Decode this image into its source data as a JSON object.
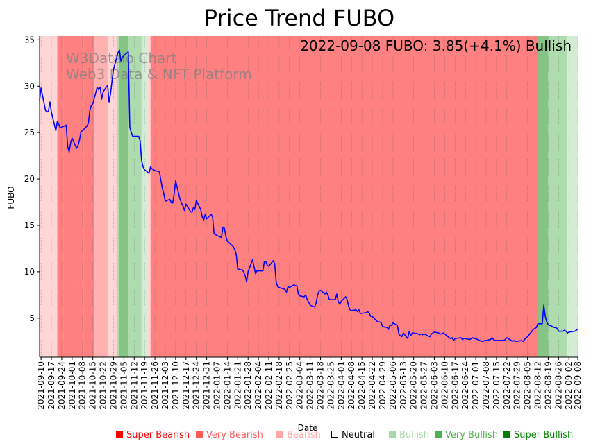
{
  "chart_data": {
    "type": "line",
    "title": "Price Trend FUBO",
    "xlabel": "Date",
    "ylabel": "FUBO",
    "ylim": [
      0.8,
      35.4
    ],
    "yticks": [
      5,
      10,
      15,
      20,
      25,
      30,
      35
    ],
    "annotation": "2022-09-08 FUBO: 3.85(+4.1%) Bullish",
    "watermark": [
      "W3Dataio Chart",
      "Web3 Data & NFT Platform"
    ],
    "start_date": "2021-09-09",
    "end_date": "2022-09-08",
    "xticks": [
      "2021-09-10",
      "2021-09-17",
      "2021-09-24",
      "2021-10-01",
      "2021-10-08",
      "2021-10-15",
      "2021-10-22",
      "2021-10-29",
      "2021-11-05",
      "2021-11-12",
      "2021-11-19",
      "2021-11-26",
      "2021-12-03",
      "2021-12-10",
      "2021-12-17",
      "2021-12-24",
      "2021-12-31",
      "2022-01-07",
      "2022-01-14",
      "2022-01-21",
      "2022-01-28",
      "2022-02-04",
      "2022-02-11",
      "2022-02-18",
      "2022-02-25",
      "2022-03-04",
      "2022-03-11",
      "2022-03-18",
      "2022-03-25",
      "2022-04-01",
      "2022-04-08",
      "2022-04-15",
      "2022-04-22",
      "2022-04-29",
      "2022-05-06",
      "2022-05-13",
      "2022-05-20",
      "2022-05-27",
      "2022-06-03",
      "2022-06-10",
      "2022-06-17",
      "2022-06-24",
      "2022-07-01",
      "2022-07-08",
      "2022-07-15",
      "2022-07-22",
      "2022-07-29",
      "2022-08-05",
      "2022-08-12",
      "2022-08-19",
      "2022-08-26",
      "2022-09-02",
      "2022-09-08"
    ],
    "price_series": {
      "name": "FUBO",
      "color": "#0000ff",
      "points": [
        [
          "2021-09-09",
          28.5
        ],
        [
          "2021-09-10",
          29.8
        ],
        [
          "2021-09-13",
          27.4
        ],
        [
          "2021-09-14",
          27.2
        ],
        [
          "2021-09-15",
          27.3
        ],
        [
          "2021-09-16",
          28.3
        ],
        [
          "2021-09-17",
          27.2
        ],
        [
          "2021-09-20",
          25.2
        ],
        [
          "2021-09-21",
          26.2
        ],
        [
          "2021-09-22",
          25.9
        ],
        [
          "2021-09-23",
          25.5
        ],
        [
          "2021-09-24",
          25.6
        ],
        [
          "2021-09-27",
          25.8
        ],
        [
          "2021-09-28",
          23.5
        ],
        [
          "2021-09-29",
          22.9
        ],
        [
          "2021-09-30",
          23.9
        ],
        [
          "2021-10-01",
          24.4
        ],
        [
          "2021-10-04",
          23.3
        ],
        [
          "2021-10-05",
          23.6
        ],
        [
          "2021-10-06",
          24.2
        ],
        [
          "2021-10-07",
          25.1
        ],
        [
          "2021-10-08",
          25.2
        ],
        [
          "2021-10-11",
          25.7
        ],
        [
          "2021-10-12",
          26.0
        ],
        [
          "2021-10-13",
          27.4
        ],
        [
          "2021-10-14",
          27.9
        ],
        [
          "2021-10-15",
          28.1
        ],
        [
          "2021-10-18",
          29.9
        ],
        [
          "2021-10-19",
          29.6
        ],
        [
          "2021-10-20",
          29.9
        ],
        [
          "2021-10-21",
          28.6
        ],
        [
          "2021-10-22",
          29.4
        ],
        [
          "2021-10-25",
          30.1
        ],
        [
          "2021-10-26",
          28.3
        ],
        [
          "2021-10-27",
          29.2
        ],
        [
          "2021-10-28",
          30.6
        ],
        [
          "2021-10-29",
          31.8
        ],
        [
          "2021-11-01",
          33.6
        ],
        [
          "2021-11-02",
          33.9
        ],
        [
          "2021-11-03",
          32.7
        ],
        [
          "2021-11-04",
          33.1
        ],
        [
          "2021-11-05",
          33.3
        ],
        [
          "2021-11-08",
          33.7
        ],
        [
          "2021-11-09",
          25.6
        ],
        [
          "2021-11-10",
          25.0
        ],
        [
          "2021-11-11",
          24.6
        ],
        [
          "2021-11-12",
          24.6
        ],
        [
          "2021-11-15",
          24.6
        ],
        [
          "2021-11-16",
          24.1
        ],
        [
          "2021-11-17",
          22.0
        ],
        [
          "2021-11-18",
          21.3
        ],
        [
          "2021-11-19",
          21.0
        ],
        [
          "2021-11-22",
          20.6
        ],
        [
          "2021-11-23",
          21.3
        ],
        [
          "2021-11-24",
          21.1
        ],
        [
          "2021-11-26",
          20.9
        ],
        [
          "2021-11-29",
          20.8
        ],
        [
          "2021-11-30",
          19.9
        ],
        [
          "2021-12-01",
          19.0
        ],
        [
          "2021-12-02",
          18.4
        ],
        [
          "2021-12-03",
          17.6
        ],
        [
          "2021-12-06",
          17.8
        ],
        [
          "2021-12-07",
          17.5
        ],
        [
          "2021-12-08",
          17.4
        ],
        [
          "2021-12-09",
          18.4
        ],
        [
          "2021-12-10",
          19.8
        ],
        [
          "2021-12-13",
          17.8
        ],
        [
          "2021-12-14",
          17.4
        ],
        [
          "2021-12-15",
          17.1
        ],
        [
          "2021-12-16",
          16.6
        ],
        [
          "2021-12-17",
          17.3
        ],
        [
          "2021-12-20",
          16.5
        ],
        [
          "2021-12-21",
          16.4
        ],
        [
          "2021-12-22",
          16.9
        ],
        [
          "2021-12-23",
          16.7
        ],
        [
          "2021-12-24",
          17.7
        ],
        [
          "2021-12-27",
          16.7
        ],
        [
          "2021-12-28",
          15.9
        ],
        [
          "2021-12-29",
          15.6
        ],
        [
          "2021-12-30",
          16.2
        ],
        [
          "2021-12-31",
          15.7
        ],
        [
          "2022-01-03",
          16.2
        ],
        [
          "2022-01-04",
          15.9
        ],
        [
          "2022-01-05",
          14.1
        ],
        [
          "2022-01-06",
          14.0
        ],
        [
          "2022-01-07",
          13.9
        ],
        [
          "2022-01-10",
          13.7
        ],
        [
          "2022-01-11",
          14.8
        ],
        [
          "2022-01-12",
          14.7
        ],
        [
          "2022-01-13",
          13.8
        ],
        [
          "2022-01-14",
          13.3
        ],
        [
          "2022-01-18",
          12.7
        ],
        [
          "2022-01-19",
          12.4
        ],
        [
          "2022-01-20",
          11.9
        ],
        [
          "2022-01-21",
          10.3
        ],
        [
          "2022-01-24",
          10.2
        ],
        [
          "2022-01-25",
          10.0
        ],
        [
          "2022-01-26",
          9.6
        ],
        [
          "2022-01-27",
          8.9
        ],
        [
          "2022-01-28",
          10.0
        ],
        [
          "2022-01-31",
          11.3
        ],
        [
          "2022-02-01",
          10.6
        ],
        [
          "2022-02-02",
          9.8
        ],
        [
          "2022-02-03",
          10.1
        ],
        [
          "2022-02-04",
          10.1
        ],
        [
          "2022-02-07",
          10.1
        ],
        [
          "2022-02-08",
          11.1
        ],
        [
          "2022-02-09",
          11.1
        ],
        [
          "2022-02-10",
          10.7
        ],
        [
          "2022-02-11",
          10.6
        ],
        [
          "2022-02-14",
          11.2
        ],
        [
          "2022-02-15",
          10.9
        ],
        [
          "2022-02-16",
          8.9
        ],
        [
          "2022-02-17",
          8.4
        ],
        [
          "2022-02-18",
          8.3
        ],
        [
          "2022-02-22",
          8.1
        ],
        [
          "2022-02-23",
          7.8
        ],
        [
          "2022-02-24",
          8.4
        ],
        [
          "2022-02-25",
          8.3
        ],
        [
          "2022-02-28",
          8.6
        ],
        [
          "2022-03-01",
          8.5
        ],
        [
          "2022-03-02",
          8.5
        ],
        [
          "2022-03-03",
          7.6
        ],
        [
          "2022-03-04",
          7.4
        ],
        [
          "2022-03-07",
          7.3
        ],
        [
          "2022-03-08",
          7.5
        ],
        [
          "2022-03-09",
          7.0
        ],
        [
          "2022-03-10",
          6.7
        ],
        [
          "2022-03-11",
          6.4
        ],
        [
          "2022-03-14",
          6.2
        ],
        [
          "2022-03-15",
          6.6
        ],
        [
          "2022-03-16",
          7.5
        ],
        [
          "2022-03-17",
          7.9
        ],
        [
          "2022-03-18",
          8.0
        ],
        [
          "2022-03-21",
          7.6
        ],
        [
          "2022-03-22",
          7.8
        ],
        [
          "2022-03-23",
          7.5
        ],
        [
          "2022-03-24",
          7.0
        ],
        [
          "2022-03-25",
          7.0
        ],
        [
          "2022-03-28",
          7.0
        ],
        [
          "2022-03-29",
          7.6
        ],
        [
          "2022-03-30",
          6.8
        ],
        [
          "2022-03-31",
          6.5
        ],
        [
          "2022-04-01",
          6.8
        ],
        [
          "2022-04-04",
          7.3
        ],
        [
          "2022-04-05",
          7.0
        ],
        [
          "2022-04-06",
          6.3
        ],
        [
          "2022-04-07",
          5.9
        ],
        [
          "2022-04-08",
          5.8
        ],
        [
          "2022-04-11",
          5.9
        ],
        [
          "2022-04-12",
          5.7
        ],
        [
          "2022-04-13",
          5.9
        ],
        [
          "2022-04-14",
          5.5
        ],
        [
          "2022-04-18",
          5.6
        ],
        [
          "2022-04-19",
          5.7
        ],
        [
          "2022-04-20",
          5.5
        ],
        [
          "2022-04-21",
          5.2
        ],
        [
          "2022-04-22",
          5.2
        ],
        [
          "2022-04-25",
          4.7
        ],
        [
          "2022-04-26",
          4.6
        ],
        [
          "2022-04-27",
          4.6
        ],
        [
          "2022-04-28",
          4.5
        ],
        [
          "2022-04-29",
          4.1
        ],
        [
          "2022-05-02",
          4.0
        ],
        [
          "2022-05-03",
          3.8
        ],
        [
          "2022-05-04",
          4.3
        ],
        [
          "2022-05-05",
          4.2
        ],
        [
          "2022-05-06",
          4.5
        ],
        [
          "2022-05-09",
          4.2
        ],
        [
          "2022-05-10",
          3.3
        ],
        [
          "2022-05-11",
          3.1
        ],
        [
          "2022-05-12",
          3.0
        ],
        [
          "2022-05-13",
          3.4
        ],
        [
          "2022-05-16",
          2.8
        ],
        [
          "2022-05-17",
          3.6
        ],
        [
          "2022-05-18",
          3.1
        ],
        [
          "2022-05-19",
          3.4
        ],
        [
          "2022-05-20",
          3.4
        ],
        [
          "2022-05-23",
          3.3
        ],
        [
          "2022-05-24",
          3.2
        ],
        [
          "2022-05-25",
          3.3
        ],
        [
          "2022-05-26",
          3.2
        ],
        [
          "2022-05-27",
          3.3
        ],
        [
          "2022-05-31",
          3.0
        ],
        [
          "2022-06-01",
          3.3
        ],
        [
          "2022-06-02",
          3.4
        ],
        [
          "2022-06-03",
          3.5
        ],
        [
          "2022-06-06",
          3.4
        ],
        [
          "2022-06-07",
          3.3
        ],
        [
          "2022-06-08",
          3.3
        ],
        [
          "2022-06-09",
          3.4
        ],
        [
          "2022-06-10",
          3.3
        ],
        [
          "2022-06-13",
          2.9
        ],
        [
          "2022-06-14",
          2.8
        ],
        [
          "2022-06-15",
          2.9
        ],
        [
          "2022-06-16",
          2.6
        ],
        [
          "2022-06-17",
          2.8
        ],
        [
          "2022-06-21",
          2.9
        ],
        [
          "2022-06-22",
          2.7
        ],
        [
          "2022-06-23",
          2.8
        ],
        [
          "2022-06-24",
          2.8
        ],
        [
          "2022-06-27",
          2.7
        ],
        [
          "2022-06-28",
          2.8
        ],
        [
          "2022-06-29",
          2.9
        ],
        [
          "2022-06-30",
          2.8
        ],
        [
          "2022-07-01",
          2.8
        ],
        [
          "2022-07-05",
          2.5
        ],
        [
          "2022-07-06",
          2.5
        ],
        [
          "2022-07-07",
          2.6
        ],
        [
          "2022-07-08",
          2.6
        ],
        [
          "2022-07-11",
          2.7
        ],
        [
          "2022-07-12",
          2.9
        ],
        [
          "2022-07-13",
          2.7
        ],
        [
          "2022-07-14",
          2.6
        ],
        [
          "2022-07-15",
          2.6
        ],
        [
          "2022-07-18",
          2.6
        ],
        [
          "2022-07-19",
          2.6
        ],
        [
          "2022-07-20",
          2.6
        ],
        [
          "2022-07-21",
          2.7
        ],
        [
          "2022-07-22",
          2.9
        ],
        [
          "2022-07-25",
          2.6
        ],
        [
          "2022-07-26",
          2.5
        ],
        [
          "2022-07-27",
          2.6
        ],
        [
          "2022-07-28",
          2.5
        ],
        [
          "2022-07-29",
          2.5
        ],
        [
          "2022-08-01",
          2.6
        ],
        [
          "2022-08-02",
          2.5
        ],
        [
          "2022-08-03",
          2.7
        ],
        [
          "2022-08-04",
          2.9
        ],
        [
          "2022-08-05",
          3.0
        ],
        [
          "2022-08-08",
          3.6
        ],
        [
          "2022-08-09",
          3.8
        ],
        [
          "2022-08-10",
          3.9
        ],
        [
          "2022-08-11",
          4.0
        ],
        [
          "2022-08-12",
          4.4
        ],
        [
          "2022-08-15",
          4.4
        ],
        [
          "2022-08-16",
          6.4
        ],
        [
          "2022-08-17",
          5.2
        ],
        [
          "2022-08-18",
          4.6
        ],
        [
          "2022-08-19",
          4.3
        ],
        [
          "2022-08-22",
          4.1
        ],
        [
          "2022-08-23",
          4.0
        ],
        [
          "2022-08-24",
          4.0
        ],
        [
          "2022-08-25",
          3.9
        ],
        [
          "2022-08-26",
          3.6
        ],
        [
          "2022-08-29",
          3.6
        ],
        [
          "2022-08-30",
          3.7
        ],
        [
          "2022-08-31",
          3.6
        ],
        [
          "2022-09-01",
          3.4
        ],
        [
          "2022-09-02",
          3.5
        ],
        [
          "2022-09-06",
          3.6
        ],
        [
          "2022-09-07",
          3.7
        ],
        [
          "2022-09-08",
          3.85
        ]
      ]
    },
    "sentiment_colors": {
      "Super Bearish": "#ff0000",
      "Very Bearish": "#ff5a5a",
      "Bearish": "#ffa8a8",
      "Neutral": "#ffffff",
      "Bullish": "#a8d8a8",
      "Very Bullish": "#50b050",
      "Super Bullish": "#008000"
    },
    "sentiment_periods": [
      [
        "2021-09-09",
        "2021-09-21",
        "light-red"
      ],
      [
        "2021-09-21",
        "2021-09-25",
        "very-bearish"
      ],
      [
        "2021-09-25",
        "2021-10-02",
        "very-bearish"
      ],
      [
        "2021-10-02",
        "2021-10-09",
        "very-bearish"
      ],
      [
        "2021-10-09",
        "2021-10-16",
        "very-bearish"
      ],
      [
        "2021-10-16",
        "2021-10-25",
        "bearish"
      ],
      [
        "2021-10-25",
        "2021-10-31",
        "light-red"
      ],
      [
        "2021-10-31",
        "2021-11-01",
        "bearish"
      ],
      [
        "2021-11-01",
        "2021-11-02",
        "bullish"
      ],
      [
        "2021-11-02",
        "2021-11-08",
        "very-bullish"
      ],
      [
        "2021-11-08",
        "2021-11-17",
        "bullish"
      ],
      [
        "2021-11-17",
        "2021-11-21",
        "light-green"
      ],
      [
        "2021-11-21",
        "2021-11-23",
        "light-red"
      ],
      [
        "2021-11-23",
        "2022-08-12",
        "very-bearish"
      ],
      [
        "2022-08-12",
        "2022-08-19",
        "very-bullish"
      ],
      [
        "2022-08-19",
        "2022-09-01",
        "bullish"
      ],
      [
        "2022-09-01",
        "2022-09-09",
        "light-green"
      ]
    ],
    "legend": [
      "Super Bearish",
      "Very Bearish",
      "Bearish",
      "Neutral",
      "Bullish",
      "Very Bullish",
      "Super Bullish"
    ]
  }
}
